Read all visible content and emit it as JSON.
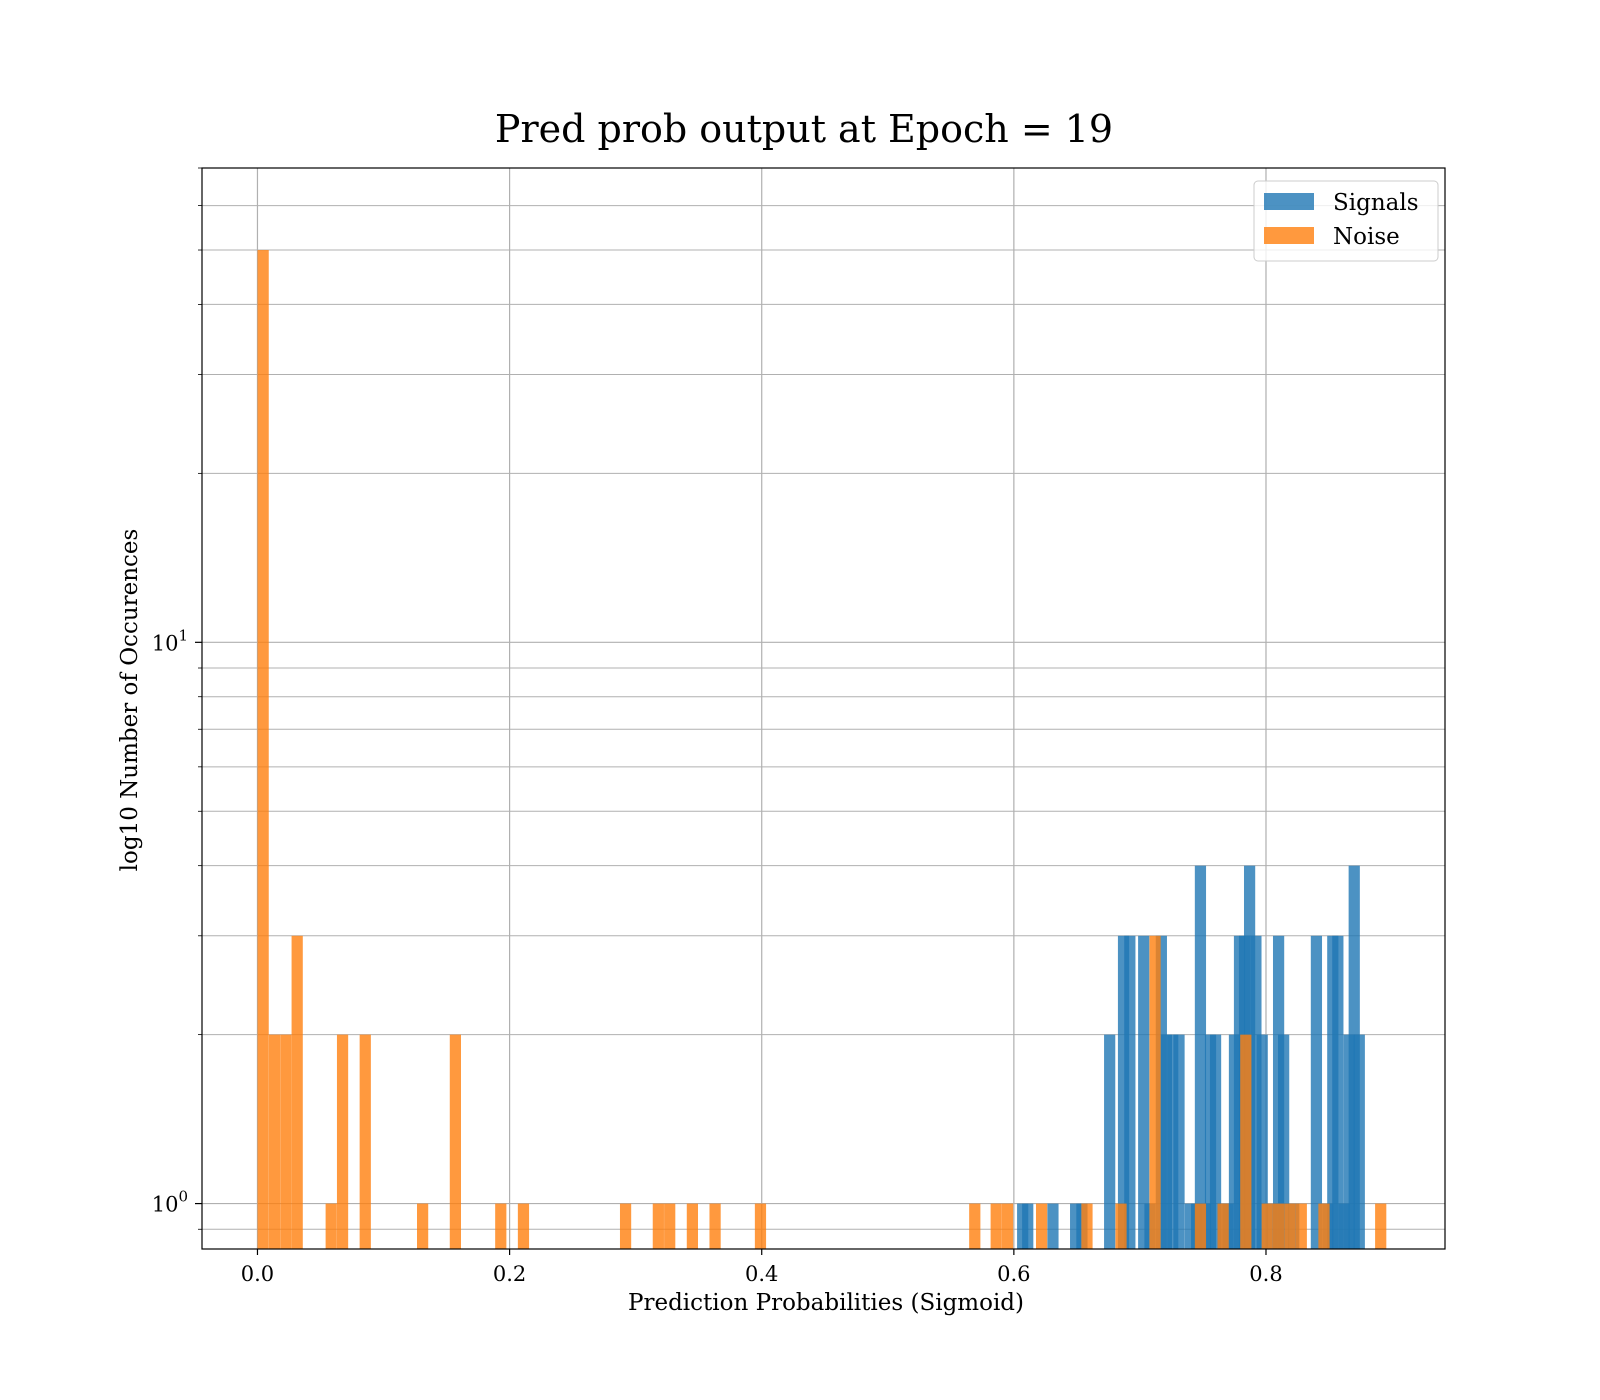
{
  "chart_data": {
    "type": "bar",
    "title": "Pred prob output at Epoch = 19",
    "xlabel": "Prediction Probabilities (Sigmoid)",
    "ylabel": "log10 Number of Occurences",
    "xlim": [
      -0.044,
      0.942
    ],
    "ylim": [
      0.83,
      70
    ],
    "yscale": "log",
    "grid": true,
    "legend_position": "top-right",
    "x_ticks": [
      "0.0",
      "0.2",
      "0.4",
      "0.6",
      "0.8"
    ],
    "x_tick_values": [
      0.0,
      0.2,
      0.4,
      0.6,
      0.8
    ],
    "y_ticks": [
      {
        "base": "10",
        "exp": "0",
        "value": 1
      },
      {
        "base": "10",
        "exp": "1",
        "value": 10
      }
    ],
    "bin_width": 0.0089,
    "series": [
      {
        "name": "Signals",
        "color": "#1f77b4",
        "opacity": 0.8,
        "bars": [
          [
            0.607,
            1
          ],
          [
            0.611,
            1
          ],
          [
            0.631,
            1
          ],
          [
            0.649,
            1
          ],
          [
            0.654,
            1
          ],
          [
            0.676,
            2
          ],
          [
            0.687,
            3
          ],
          [
            0.692,
            3
          ],
          [
            0.703,
            3
          ],
          [
            0.708,
            1
          ],
          [
            0.717,
            3
          ],
          [
            0.721,
            2
          ],
          [
            0.726,
            2
          ],
          [
            0.731,
            2
          ],
          [
            0.74,
            1
          ],
          [
            0.745,
            1
          ],
          [
            0.748,
            4
          ],
          [
            0.752,
            1
          ],
          [
            0.756,
            2
          ],
          [
            0.76,
            2
          ],
          [
            0.766,
            1
          ],
          [
            0.77,
            1
          ],
          [
            0.775,
            2
          ],
          [
            0.779,
            3
          ],
          [
            0.783,
            3
          ],
          [
            0.787,
            4
          ],
          [
            0.792,
            3
          ],
          [
            0.797,
            2
          ],
          [
            0.805,
            1
          ],
          [
            0.81,
            3
          ],
          [
            0.814,
            2
          ],
          [
            0.822,
            1
          ],
          [
            0.84,
            3
          ],
          [
            0.849,
            1
          ],
          [
            0.853,
            3
          ],
          [
            0.857,
            3
          ],
          [
            0.862,
            1
          ],
          [
            0.866,
            2
          ],
          [
            0.87,
            4
          ],
          [
            0.874,
            2
          ]
        ]
      },
      {
        "name": "Noise",
        "color": "#ff7f0e",
        "opacity": 0.8,
        "bars": [
          [
            0.0045,
            50
          ],
          [
            0.0135,
            2
          ],
          [
            0.0225,
            2
          ],
          [
            0.0315,
            3
          ],
          [
            0.0585,
            1
          ],
          [
            0.0675,
            2
          ],
          [
            0.0855,
            2
          ],
          [
            0.131,
            1
          ],
          [
            0.157,
            2
          ],
          [
            0.193,
            1
          ],
          [
            0.211,
            1
          ],
          [
            0.292,
            1
          ],
          [
            0.318,
            1
          ],
          [
            0.327,
            1
          ],
          [
            0.345,
            1
          ],
          [
            0.363,
            1
          ],
          [
            0.399,
            1
          ],
          [
            0.569,
            1
          ],
          [
            0.586,
            1
          ],
          [
            0.595,
            1
          ],
          [
            0.622,
            1
          ],
          [
            0.658,
            1
          ],
          [
            0.685,
            1
          ],
          [
            0.712,
            3
          ],
          [
            0.748,
            1
          ],
          [
            0.766,
            1
          ],
          [
            0.784,
            2
          ],
          [
            0.801,
            1
          ],
          [
            0.81,
            1
          ],
          [
            0.819,
            1
          ],
          [
            0.828,
            1
          ],
          [
            0.846,
            1
          ],
          [
            0.891,
            1
          ]
        ]
      }
    ]
  }
}
